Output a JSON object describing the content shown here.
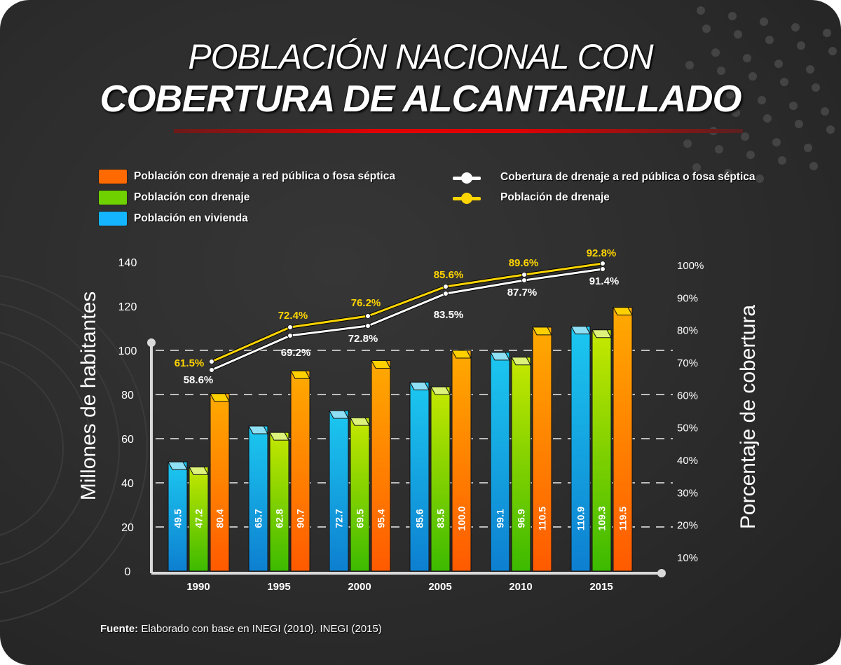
{
  "title": {
    "line1": "POBLACIÓN NACIONAL CON",
    "line2": "COBERTURA DE ALCANTARILLADO"
  },
  "legend": {
    "bars": [
      {
        "label": "Población con drenaje a red pública o fosa séptica",
        "color": "#ff6a00"
      },
      {
        "label": "Población con drenaje",
        "color": "#6fd100"
      },
      {
        "label": "Población en vivienda",
        "color": "#14b4ff"
      }
    ],
    "lines": [
      {
        "label": "Cobertura de drenaje a red pública o fosa séptica",
        "color": "#ffffff"
      },
      {
        "label": "Población de drenaje",
        "color": "#ffd500"
      }
    ]
  },
  "source": {
    "prefix": "Fuente:",
    "text": " Elaborado con base en INEGI (2010). INEGI (2015)"
  },
  "chart_data": {
    "type": "bar",
    "title": "POBLACIÓN NACIONAL CON COBERTURA DE ALCANTARILLADO",
    "xlabel": "",
    "ylabel": "Millones de habitantes",
    "ylabel_right": "Porcentaje de cobertura",
    "categories": [
      "1990",
      "1995",
      "2000",
      "2005",
      "2010",
      "2015"
    ],
    "ylim": [
      0,
      140
    ],
    "yticks": [
      "0",
      "20",
      "40",
      "60",
      "80",
      "100",
      "120",
      "140"
    ],
    "ylim_right": [
      10,
      100
    ],
    "yticks_right": [
      "10%",
      "20%",
      "30%",
      "40%",
      "50%",
      "60%",
      "70%",
      "80%",
      "90%",
      "100%"
    ],
    "grid": "dashed horizontal",
    "series": [
      {
        "name": "Población en vivienda",
        "type": "bar",
        "color": "#14b4ff",
        "values": [
          49.5,
          65.7,
          72.7,
          85.6,
          99.1,
          110.9
        ],
        "labels": [
          "49.5",
          "65.7",
          "72.7",
          "85.6",
          "99.1",
          "110.9"
        ]
      },
      {
        "name": "Población con drenaje",
        "type": "bar",
        "color": "#6fd100",
        "values": [
          47.2,
          62.8,
          69.5,
          83.5,
          96.9,
          109.3
        ],
        "labels": [
          "47.2",
          "62.8",
          "69.5",
          "83.5",
          "96.9",
          "109.3"
        ]
      },
      {
        "name": "Población con drenaje a red pública o fosa séptica",
        "type": "bar",
        "color": "#ff6a00",
        "values": [
          80.4,
          90.7,
          95.4,
          100.0,
          110.5,
          119.5
        ],
        "labels": [
          "80.4",
          "90.7",
          "95.4",
          "100.0",
          "110.5",
          "119.5"
        ]
      },
      {
        "name": "Población de drenaje",
        "type": "line",
        "axis": "right",
        "color": "#ffd500",
        "values": [
          61.5,
          72.4,
          76.2,
          85.6,
          89.6,
          92.8
        ],
        "labels": [
          "61.5%",
          "72.4%",
          "76.2%",
          "85.6%",
          "89.6%",
          "92.8%"
        ]
      },
      {
        "name": "Cobertura de drenaje a red pública o fosa séptica",
        "type": "line",
        "axis": "right",
        "color": "#ffffff",
        "values": [
          58.6,
          69.2,
          72.8,
          83.5,
          87.7,
          91.4
        ],
        "labels": [
          "58.6%",
          "69.2%",
          "72.8%",
          "83.5%",
          "87.7%",
          "91.4%"
        ]
      }
    ],
    "legend_position": "top"
  }
}
